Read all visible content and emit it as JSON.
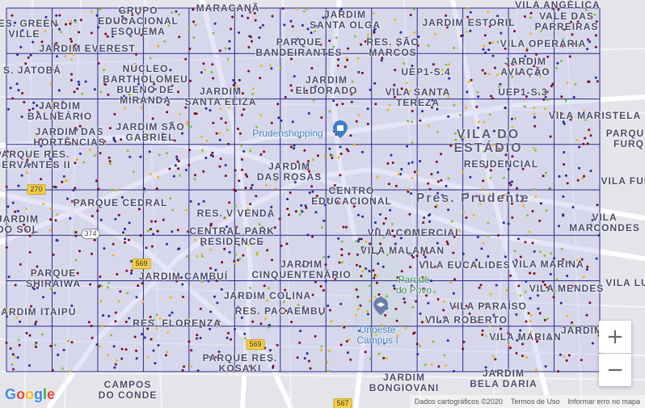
{
  "map": {
    "neighborhoods": [
      {
        "id": "vila-anglica",
        "text": "VILA ANGÉLICA"
      },
      {
        "id": "maracana",
        "text": "MARACANÃ"
      },
      {
        "id": "grupo-educacional-esquema",
        "text": "GRUPO\nEDUCACIONAL\nESQUEMA"
      },
      {
        "id": "res-green-ville",
        "text": "RES. GREEN\nVILLE"
      },
      {
        "id": "jardim-santa-olga",
        "text": "JARDIM\nSANTA OLGA"
      },
      {
        "id": "jardim-estoril",
        "text": "JARDIM ESTORIL"
      },
      {
        "id": "vale-das-parreiras",
        "text": "VALE DAS\nPARREIRAS"
      },
      {
        "id": "jardim-everest",
        "text": "JARDIM EVEREST"
      },
      {
        "id": "parque-bandeirantes",
        "text": "PARQUE\nBANDEIRANTES"
      },
      {
        "id": "res-sao-marcos",
        "text": "RES. SÃO\nMARCOS"
      },
      {
        "id": "vila-operaria",
        "text": "VILA OPERÁRIA"
      },
      {
        "id": "s-jatoba",
        "text": "S. JATOBÁ"
      },
      {
        "id": "nucleo-bartholomeu",
        "text": "NÚCLEO\nBARTHOLOMEU\nBUENO DE\nMIRANDA"
      },
      {
        "id": "uep1-s4",
        "text": "UEP1-S.4"
      },
      {
        "id": "jardim-aviacao",
        "text": "JARDIM\nAVIAÇÃO"
      },
      {
        "id": "jardim-eldorado",
        "text": "JARDIM\nELDORADO"
      },
      {
        "id": "jardim-santa-eliza",
        "text": "JARDIM\nSANTA ELIZA"
      },
      {
        "id": "vila-santa-tereza",
        "text": "VILA SANTA\nTEREZA"
      },
      {
        "id": "uep1-s3",
        "text": "UEP1-S.3"
      },
      {
        "id": "jardim-balneario",
        "text": "JARDIM\nBALNEÁRIO"
      },
      {
        "id": "vila-maristela",
        "text": "VILA MARISTELA"
      },
      {
        "id": "jardim-das-hortencias",
        "text": "JARDIM DAS\nHORTÊNCIAS"
      },
      {
        "id": "jardim-sao-gabriel",
        "text": "JARDIM SÃO\nGABRIEL"
      },
      {
        "id": "parque-furquim",
        "text": "PARQUE\nFURQ"
      },
      {
        "id": "parque-res-cervantes",
        "text": "PARQUE RES.\nCERVANTES II"
      },
      {
        "id": "jardim-das-rosas",
        "text": "JARDIM\nDAS ROSAS"
      },
      {
        "id": "residencial",
        "text": "RESIDENCIAL"
      },
      {
        "id": "vila-fur",
        "text": "VILA FUR"
      },
      {
        "id": "centro-educacional",
        "text": "CENTRO\nEDUCACIONAL"
      },
      {
        "id": "parque-cedral",
        "text": "PARQUE CEDRAL"
      },
      {
        "id": "res-v-venda",
        "text": "RES. V VENDA"
      },
      {
        "id": "jardim-do-sol",
        "text": "JARDIM\nDO SOL"
      },
      {
        "id": "vila-marcondes",
        "text": "VILA\nMARCONDES"
      },
      {
        "id": "central-park",
        "text": "CENTRAL PARK\nRESIDENCE"
      },
      {
        "id": "vila-comercial",
        "text": "VILA COMERCIAL"
      },
      {
        "id": "vila-malaman",
        "text": "VILA MALAMAN"
      },
      {
        "id": "vila-eucalides",
        "text": "VILA EUCALIDES"
      },
      {
        "id": "vila-marina",
        "text": "VILA MARINA"
      },
      {
        "id": "parque-shiraiwa",
        "text": "PARQUE\nSHIRAIWA"
      },
      {
        "id": "jardim-cambui",
        "text": "JARDIM CAMBUÍ"
      },
      {
        "id": "jardim-cinquentenario",
        "text": "JARDIM\nCINQUENTENÁRIO"
      },
      {
        "id": "vila-mendes",
        "text": "VILA MENDES"
      },
      {
        "id": "vila-lu",
        "text": "VILA LU"
      },
      {
        "id": "jardim-colina",
        "text": "JARDIM COLINA"
      },
      {
        "id": "vila-paraiso",
        "text": "VILA PARAÍSO"
      },
      {
        "id": "jardim-itaipu",
        "text": "JARDIM ITAIPU"
      },
      {
        "id": "res-pacaembu",
        "text": "RES. PACAEMBU"
      },
      {
        "id": "vila-roberto",
        "text": "VILA ROBERTO"
      },
      {
        "id": "res-florenza",
        "text": "RES. FLORENZA"
      },
      {
        "id": "vila-marian",
        "text": "VILA MARIAN"
      },
      {
        "id": "jardim-right",
        "text": "JARDIM"
      },
      {
        "id": "parque-res-kosaki",
        "text": "PARQUE RES.\nKOSAKI"
      },
      {
        "id": "campos-do-conde",
        "text": "CAMPOS\nDO CONDE"
      },
      {
        "id": "jardim-bongiovani",
        "text": "JARDIM\nBONGIOVANI"
      },
      {
        "id": "jardim-bela-daria",
        "text": "JARDIM\nBELA DARIA"
      }
    ],
    "city_labels": [
      {
        "id": "vila-do-estadio",
        "text": "VILA DO\nESTÁDIO"
      },
      {
        "id": "pres-prudente",
        "text": "Pres. Prudente"
      }
    ],
    "poi_labels": [
      {
        "id": "prudenshopping",
        "text": "Prudenshopping",
        "kind": "poi"
      },
      {
        "id": "parque-do-povo",
        "text": "Parque\ndo Povo",
        "kind": "park"
      },
      {
        "id": "unoeste",
        "text": "Unoeste\nCampus I",
        "kind": "poi"
      }
    ],
    "road_shields": [
      {
        "id": "r270",
        "text": "270",
        "style": "yellow"
      },
      {
        "id": "r374",
        "text": "374",
        "style": "white"
      },
      {
        "id": "r569a",
        "text": "569",
        "style": "yellow"
      },
      {
        "id": "r569b",
        "text": "569",
        "style": "yellow"
      },
      {
        "id": "r567",
        "text": "567",
        "style": "yellow"
      }
    ],
    "grid": {
      "columns": 13,
      "rows": 8,
      "color": "#2a2a8a"
    },
    "colors": {
      "overlay": "#c8c8f0",
      "point_dark": "#7a0a1a",
      "point_blue": "#1a2aa0",
      "point_green": "#7dc82d",
      "point_yellow": "#e6b81c"
    }
  },
  "controls": {
    "zoom_in_label": "+",
    "zoom_out_label": "−"
  },
  "footer": {
    "map_data": "Dados cartográficos ©2020",
    "terms": "Termos de Uso",
    "report": "Informar erro no mapa"
  },
  "logo": {
    "text": "Google",
    "colors": [
      "#4285F4",
      "#EA4335",
      "#FBBC05",
      "#4285F4",
      "#34A853",
      "#EA4335"
    ]
  }
}
